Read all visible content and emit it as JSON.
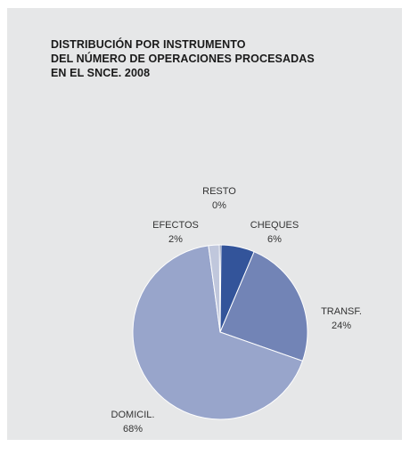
{
  "chart_data": {
    "type": "pie",
    "title_lines": [
      "DISTRIBUCIÓN POR INSTRUMENTO",
      "DEL NÚMERO DE OPERACIONES PROCESADAS",
      "EN EL SNCE. 2008"
    ],
    "slices": [
      {
        "name": "RESTO",
        "label": "0%",
        "value": 0.3,
        "color": "#2a3f7e"
      },
      {
        "name": "CHEQUES",
        "label": "6%",
        "value": 6.2,
        "color": "#33549a"
      },
      {
        "name": "TRANSF.",
        "label": "24%",
        "value": 24.0,
        "color": "#7284b6"
      },
      {
        "name": "DOMICIL.",
        "label": "68%",
        "value": 67.5,
        "color": "#98a5cb"
      },
      {
        "name": "EFECTOS",
        "label": "2%",
        "value": 2.0,
        "color": "#c0c7dc"
      }
    ]
  },
  "colors": {
    "background": "#e6e7e8",
    "slice_border": "#ffffff"
  }
}
